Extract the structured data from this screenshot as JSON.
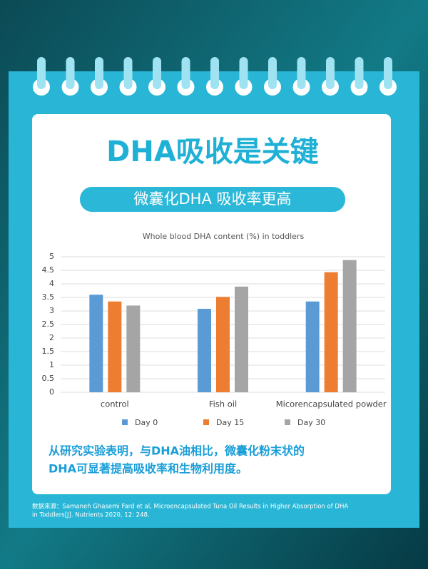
{
  "header": {
    "title": "DHA吸收是关键",
    "subtitle": "微囊化DHA  吸收率更高"
  },
  "chart_data": {
    "type": "bar",
    "title": "Whole blood DHA content (%) in toddlers",
    "categories": [
      "control",
      "Fish oil",
      "Micorencapsulated powder"
    ],
    "series": [
      {
        "name": "Day 0",
        "color": "#5b9bd5",
        "values": [
          3.6,
          3.08,
          3.35
        ]
      },
      {
        "name": "Day 15",
        "color": "#ed7d31",
        "values": [
          3.35,
          3.52,
          4.43
        ]
      },
      {
        "name": "Day 30",
        "color": "#a5a5a5",
        "values": [
          3.2,
          3.9,
          4.88
        ]
      }
    ],
    "ylim": [
      0,
      5
    ],
    "yticks": [
      0,
      0.5,
      1,
      1.5,
      2,
      2.5,
      3,
      3.5,
      4,
      4.5,
      5
    ],
    "grid": true,
    "legend": "bottom"
  },
  "body": {
    "lines": [
      "从研究实验表明，与DHA油相比，微囊化粉末状的",
      "DHA可显著提高吸收率和生物利用度。"
    ]
  },
  "citation": {
    "lines": [
      "数据来源：Samaneh Ghasemi Fard et al, Microencapsulated Tuna Oil Results in Higher Absorption of DHA",
      "in Toddlers[J]. Nutrients 2020, 12: 248."
    ]
  }
}
